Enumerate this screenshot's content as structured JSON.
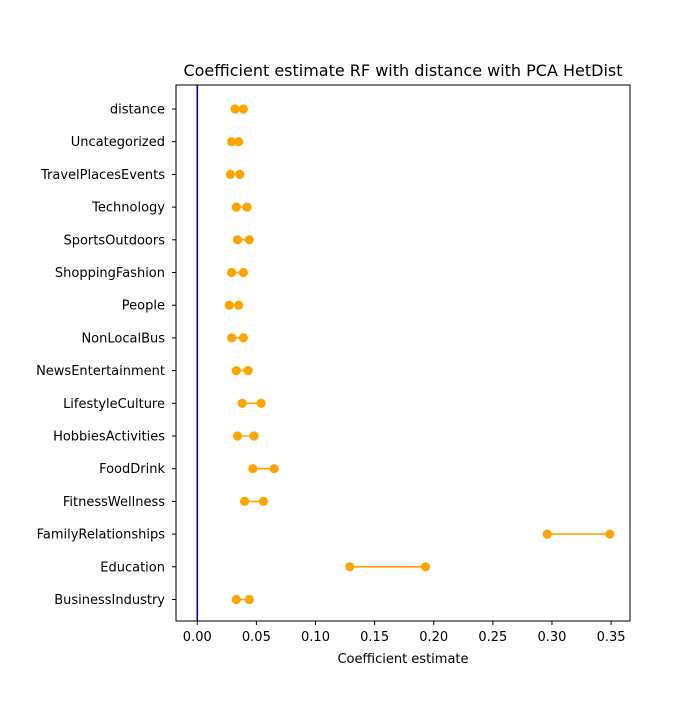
{
  "chart_data": {
    "type": "dumbbell",
    "title": "Coefficient estimate RF  with distance with PCA HetDist",
    "xlabel": "Coefficient estimate",
    "ylabel": "",
    "xlim": [
      -0.018,
      0.366
    ],
    "xticks": [
      "0.00",
      "0.05",
      "0.10",
      "0.15",
      "0.20",
      "0.25",
      "0.30",
      "0.35"
    ],
    "xtick_values": [
      0.0,
      0.05,
      0.1,
      0.15,
      0.2,
      0.25,
      0.3,
      0.35
    ],
    "grid": false,
    "reference_line": {
      "x": 0.0,
      "color": "#0000cc"
    },
    "colors": {
      "interval": "#ffa500"
    },
    "categories": [
      "distance",
      "Uncategorized",
      "TravelPlacesEvents",
      "Technology",
      "SportsOutdoors",
      "ShoppingFashion",
      "People",
      "NonLocalBus",
      "NewsEntertainment",
      "LifestyleCulture",
      "HobbiesActivities",
      "FoodDrink",
      "FitnessWellness",
      "FamilyRelationships",
      "Education",
      "BusinessIndustry"
    ],
    "low": [
      0.032,
      0.029,
      0.028,
      0.033,
      0.034,
      0.029,
      0.027,
      0.029,
      0.033,
      0.038,
      0.034,
      0.047,
      0.04,
      0.296,
      0.129,
      0.033
    ],
    "high": [
      0.039,
      0.035,
      0.036,
      0.042,
      0.044,
      0.039,
      0.035,
      0.039,
      0.043,
      0.054,
      0.048,
      0.065,
      0.056,
      0.349,
      0.193,
      0.044
    ]
  }
}
